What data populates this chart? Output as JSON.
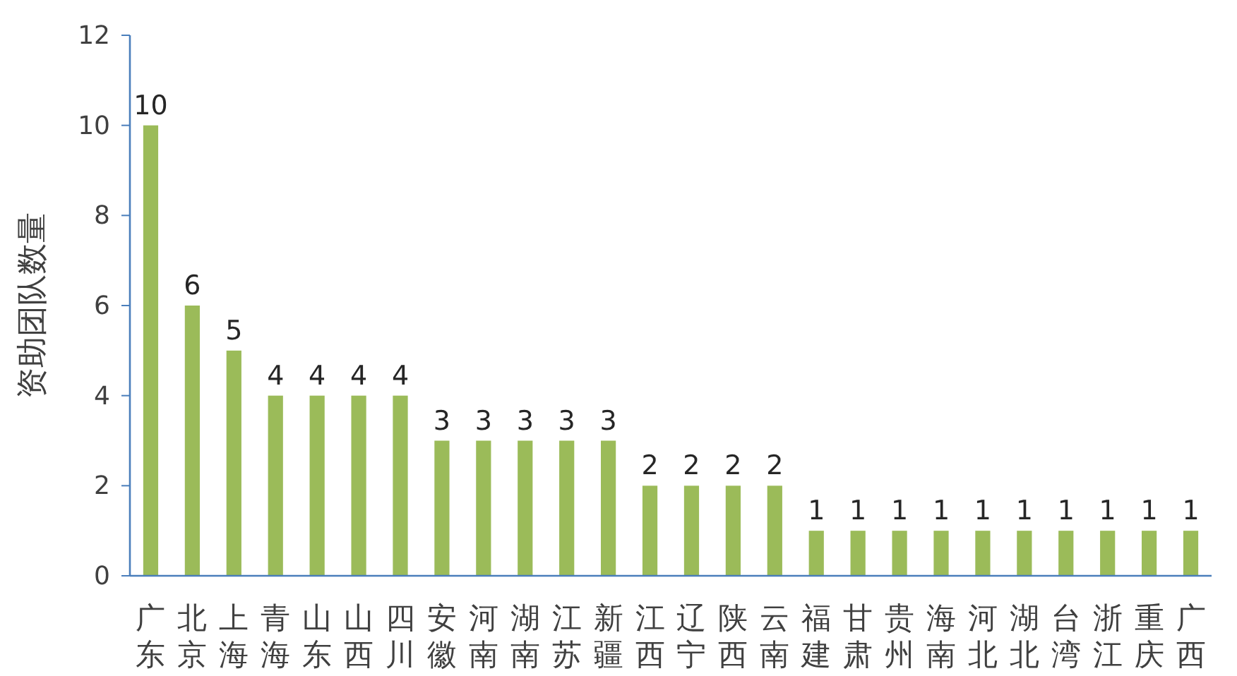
{
  "chart_data": {
    "type": "bar",
    "ylabel": "资助团队数量",
    "categories": [
      "广东",
      "北京",
      "上海",
      "青海",
      "山东",
      "山西",
      "四川",
      "安徽",
      "河南",
      "湖南",
      "江苏",
      "新疆",
      "江西",
      "辽宁",
      "陕西",
      "云南",
      "福建",
      "甘肃",
      "贵州",
      "海南",
      "河北",
      "湖北",
      "台湾",
      "浙江",
      "重庆",
      "广西"
    ],
    "values": [
      10,
      6,
      5,
      4,
      4,
      4,
      4,
      3,
      3,
      3,
      3,
      3,
      2,
      2,
      2,
      2,
      1,
      1,
      1,
      1,
      1,
      1,
      1,
      1,
      1,
      1
    ],
    "color": "#9bbb59",
    "ylim": [
      0,
      12
    ],
    "yticks": [
      0,
      2,
      4,
      6,
      8,
      10,
      12
    ],
    "data_labels": true
  }
}
